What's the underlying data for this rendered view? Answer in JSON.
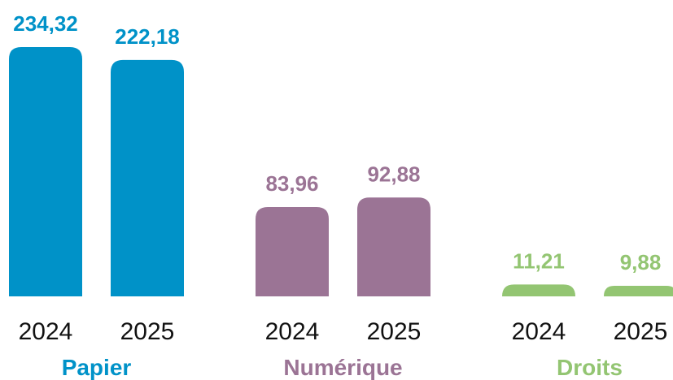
{
  "chart_data": {
    "type": "bar",
    "categories": [
      "Papier",
      "Numérique",
      "Droits"
    ],
    "colors": [
      "#0092c8",
      "#9b7495",
      "#93c572"
    ],
    "series": [
      {
        "name": "2024",
        "values": [
          234.32,
          83.96,
          11.21
        ],
        "value_labels": [
          "234,32",
          "83,96",
          "11,21"
        ]
      },
      {
        "name": "2025",
        "values": [
          222.18,
          92.88,
          9.88
        ],
        "value_labels": [
          "222,18",
          "92,88",
          "9,88"
        ]
      }
    ]
  }
}
